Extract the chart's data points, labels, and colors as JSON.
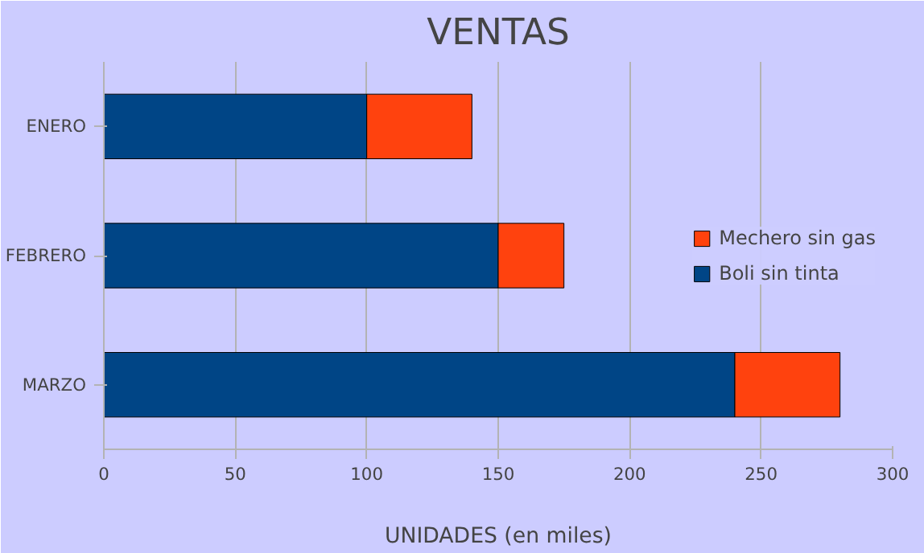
{
  "chart_data": {
    "type": "bar",
    "orientation": "horizontal",
    "stacked": true,
    "title": "VENTAS",
    "xlabel": "UNIDADES (en miles)",
    "categories": [
      "ENERO",
      "FEBRERO",
      "MARZO"
    ],
    "series": [
      {
        "name": "Boli sin tinta",
        "color": "#004586",
        "values": [
          100,
          150,
          240
        ]
      },
      {
        "name": "Mechero sin gas",
        "color": "#ff420e",
        "values": [
          40,
          25,
          40
        ]
      }
    ],
    "xlim": [
      0,
      300
    ],
    "xticks": [
      0,
      50,
      100,
      150,
      200,
      250,
      300
    ],
    "grid": "x",
    "legend": "right"
  }
}
